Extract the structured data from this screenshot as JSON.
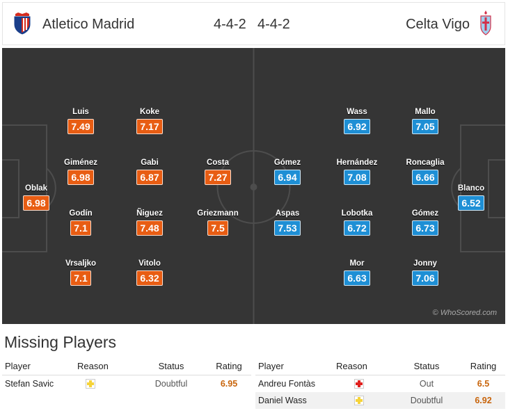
{
  "colors": {
    "home": "#e85d13",
    "away": "#1e8fd5",
    "pitch": "#353535",
    "rating_text": "#c8640a",
    "injury": "#e0221f",
    "doubtful": "#f5d33a"
  },
  "header": {
    "home_name": "Atletico Madrid",
    "home_formation": "4-4-2",
    "away_formation": "4-4-2",
    "away_name": "Celta Vigo",
    "home_crest_icon": "atletico-crest-icon",
    "away_crest_icon": "celta-crest-icon"
  },
  "home_players": [
    {
      "name": "Oblak",
      "rating": "6.98"
    },
    {
      "name": "Luis",
      "rating": "7.49"
    },
    {
      "name": "Giménez",
      "rating": "6.98"
    },
    {
      "name": "Godín",
      "rating": "7.1"
    },
    {
      "name": "Vrsaljko",
      "rating": "7.1"
    },
    {
      "name": "Koke",
      "rating": "7.17"
    },
    {
      "name": "Gabi",
      "rating": "6.87"
    },
    {
      "name": "Ñiguez",
      "rating": "7.48"
    },
    {
      "name": "Vitolo",
      "rating": "6.32"
    },
    {
      "name": "Costa",
      "rating": "7.27"
    },
    {
      "name": "Griezmann",
      "rating": "7.5"
    }
  ],
  "away_players": [
    {
      "name": "Gómez",
      "rating": "6.94"
    },
    {
      "name": "Aspas",
      "rating": "7.53"
    },
    {
      "name": "Wass",
      "rating": "6.92"
    },
    {
      "name": "Hernández",
      "rating": "7.08"
    },
    {
      "name": "Lobotka",
      "rating": "6.72"
    },
    {
      "name": "Mor",
      "rating": "6.63"
    },
    {
      "name": "Mallo",
      "rating": "7.05"
    },
    {
      "name": "Roncaglia",
      "rating": "6.66"
    },
    {
      "name": "Gómez",
      "rating": "6.73"
    },
    {
      "name": "Jonny",
      "rating": "7.06"
    },
    {
      "name": "Blanco",
      "rating": "6.52"
    }
  ],
  "watermark": "© WhoScored.com",
  "missing": {
    "title": "Missing Players",
    "headers": {
      "player": "Player",
      "reason": "Reason",
      "status": "Status",
      "rating": "Rating"
    },
    "home": [
      {
        "player": "Stefan Savic",
        "reason_icon": "doubtful-icon",
        "status": "Doubtful",
        "rating": "6.95"
      }
    ],
    "away": [
      {
        "player": "Andreu Fontàs",
        "reason_icon": "injury-icon",
        "status": "Out",
        "rating": "6.5"
      },
      {
        "player": "Daniel Wass",
        "reason_icon": "doubtful-icon",
        "status": "Doubtful",
        "rating": "6.92"
      }
    ]
  }
}
